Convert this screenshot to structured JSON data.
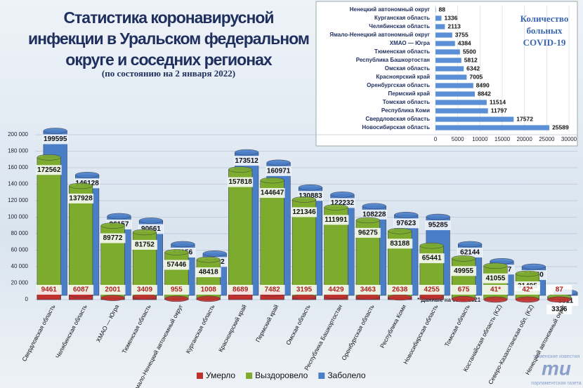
{
  "chart_data": [
    {
      "type": "bar",
      "orientation": "vertical",
      "title": "Статистика коронавирусной инфекции в Уральском федеральном округе и соседних регионах",
      "subtitle": "(по состоянию на 2 января 2022)",
      "annotation": "* Данные на 01.02.2021",
      "categories": [
        "Свердловская область",
        "Челябинская область",
        "ХМАО — Югра",
        "Тюменская область",
        "Ямало-Ненецкий автономный округ",
        "Курганская область",
        "Красноярский край",
        "Пермский край",
        "Омская область",
        "Республика Башкортостан",
        "Оренбургская область",
        "Республика Коми",
        "Новосибирская область",
        "Томская область",
        "Костанайская область (KZ)",
        "Северо-Казахстанская обл. (KZ)",
        "Ненецкий автономный округ"
      ],
      "series": [
        {
          "name": "Заболело",
          "color": "#4a7fc8",
          "values": [
            199595,
            146128,
            96157,
            90661,
            62156,
            50762,
            173512,
            160971,
            130883,
            122232,
            108228,
            97623,
            95285,
            62144,
            41487,
            34850,
            3511
          ]
        },
        {
          "name": "Выздоровело",
          "color": "#7cab2e",
          "values": [
            172562,
            137928,
            89772,
            81752,
            57446,
            48418,
            157818,
            144647,
            121346,
            111991,
            96275,
            83188,
            65441,
            49955,
            41055,
            31495,
            3336
          ]
        },
        {
          "name": "Умерло",
          "color": "#c0302e",
          "values": [
            9461,
            6087,
            2001,
            3409,
            955,
            1008,
            8689,
            7482,
            3195,
            4429,
            3463,
            2638,
            4255,
            675,
            41,
            42,
            87
          ],
          "value_labels": [
            null,
            null,
            null,
            null,
            null,
            null,
            null,
            null,
            null,
            null,
            null,
            null,
            null,
            null,
            "41*",
            "42*",
            null
          ]
        }
      ],
      "legend_order": [
        2,
        1,
        0
      ],
      "ylim": [
        0,
        200000
      ],
      "yticks": [
        0,
        {
          "value": 20000,
          "label": "20 000"
        },
        {
          "value": 40000,
          "label": "40 000"
        },
        {
          "value": 60000,
          "label": "60 000"
        },
        {
          "value": 80000,
          "label": "80 000"
        },
        {
          "value": 100000,
          "label": "100 000"
        },
        {
          "value": 120000,
          "label": "120 000"
        },
        {
          "value": 140000,
          "label": "140 000"
        },
        {
          "value": 160000,
          "label": "160 000"
        },
        {
          "value": 180000,
          "label": "180 000"
        },
        {
          "value": 200000,
          "label": "200 000"
        }
      ],
      "grid": true
    },
    {
      "type": "bar",
      "orientation": "horizontal",
      "title": "Количество больных COVID-19",
      "categories": [
        "Ненецкий автономный округ",
        "Курганская область",
        "Челябинская область",
        "Ямало-Ненецкий автономный округ",
        "ХМАО — Югра",
        "Тюменская область",
        "Республика Башкортостан",
        "Омская область",
        "Красноярский край",
        "Оренбургская область",
        "Пермский край",
        "Томская область",
        "Республика Коми",
        "Свердловская область",
        "Новосибирская область"
      ],
      "values": [
        88,
        1336,
        2113,
        3755,
        4384,
        5500,
        5812,
        6342,
        7005,
        8490,
        8842,
        11514,
        11797,
        17572,
        25589
      ],
      "color": "#5b8fd6",
      "xlim": [
        0,
        30000
      ],
      "xticks": [
        0,
        5000,
        10000,
        15000,
        20000,
        25000,
        30000
      ],
      "grid": true
    }
  ],
  "logo": {
    "top": "тюменские известия",
    "mark": "ти",
    "bottom": "парламентская газета"
  }
}
